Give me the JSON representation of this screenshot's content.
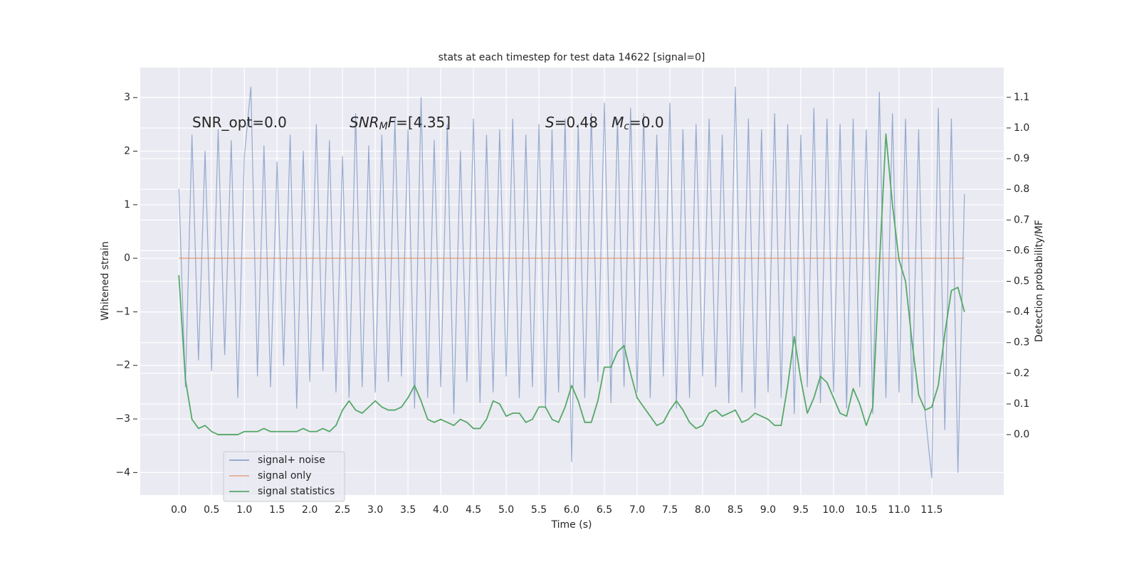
{
  "chart_data": {
    "type": "line",
    "title": "stats at each timestep for test data 14622 [signal=0]",
    "xlabel": "Time (s)",
    "ylabel": "Whitened strain",
    "y2label": "Detection probability/MF",
    "xlim": [
      -0.59,
      12.6
    ],
    "ylim": [
      -4.42,
      3.56
    ],
    "y2lim": [
      -0.197,
      1.197
    ],
    "xticks": [
      {
        "value": 0,
        "label": "0.0"
      },
      0.5,
      {
        "value": 1,
        "label": "1.0"
      },
      1.5,
      {
        "value": 2,
        "label": "2.0"
      },
      2.5,
      {
        "value": 3,
        "label": "3.0"
      },
      3.5,
      {
        "value": 4,
        "label": "4.0"
      },
      4.5,
      {
        "value": 5,
        "label": "5.0"
      },
      5.5,
      {
        "value": 6,
        "label": "6.0"
      },
      6.5,
      {
        "value": 7,
        "label": "7.0"
      },
      7.5,
      {
        "value": 8,
        "label": "8.0"
      },
      8.5,
      {
        "value": 9,
        "label": "9.0"
      },
      9.5,
      {
        "value": 10,
        "label": "10.0"
      },
      10.5,
      {
        "value": 11,
        "label": "11.0"
      },
      11.5
    ],
    "yticks": [
      {
        "value": -4,
        "label": "−4"
      },
      {
        "value": -3,
        "label": "−3"
      },
      {
        "value": -2,
        "label": "−2"
      },
      {
        "value": -1,
        "label": "−1"
      },
      0,
      1,
      2,
      3
    ],
    "y2ticks": [
      {
        "value": 0,
        "label": "0.0"
      },
      0.1,
      0.2,
      0.3,
      0.4,
      0.5,
      0.6,
      0.7,
      0.8,
      0.9,
      {
        "value": 1,
        "label": "1.0"
      },
      1.1
    ],
    "grid": true,
    "legend": "lower left",
    "annotations": [
      [
        {
          "text": "SNR_opt=0.0"
        }
      ],
      [
        {
          "text": "SNR",
          "italic": true
        },
        {
          "text": "M",
          "italic": true,
          "sub": true
        },
        {
          "text": "F",
          "italic": true
        },
        {
          "text": "=[4.35]"
        }
      ],
      [
        {
          "text": "S",
          "italic": true
        },
        {
          "text": "=0.48   "
        },
        {
          "text": "M",
          "italic": true
        },
        {
          "text": "c",
          "italic": true,
          "sub": true
        },
        {
          "text": "=0.0"
        }
      ]
    ],
    "x": [
      0,
      0.1,
      0.2,
      0.3,
      0.4,
      0.5,
      0.6,
      0.7,
      0.8,
      0.9,
      1,
      1.1,
      1.2,
      1.3,
      1.4,
      1.5,
      1.6,
      1.7,
      1.8,
      1.9,
      2,
      2.1,
      2.2,
      2.3,
      2.4,
      2.5,
      2.6,
      2.7,
      2.8,
      2.9,
      3,
      3.1,
      3.2,
      3.3,
      3.4,
      3.5,
      3.6,
      3.7,
      3.8,
      3.9,
      4,
      4.1,
      4.2,
      4.3,
      4.4,
      4.5,
      4.6,
      4.7,
      4.8,
      4.9,
      5,
      5.1,
      5.2,
      5.3,
      5.4,
      5.5,
      5.6,
      5.7,
      5.8,
      5.9,
      6,
      6.1,
      6.2,
      6.3,
      6.4,
      6.5,
      6.6,
      6.7,
      6.8,
      6.9,
      7,
      7.1,
      7.2,
      7.3,
      7.4,
      7.5,
      7.6,
      7.7,
      7.8,
      7.9,
      8,
      8.1,
      8.2,
      8.3,
      8.4,
      8.5,
      8.6,
      8.7,
      8.8,
      8.9,
      9,
      9.1,
      9.2,
      9.3,
      9.4,
      9.5,
      9.6,
      9.7,
      9.8,
      9.9,
      10,
      10.1,
      10.2,
      10.3,
      10.4,
      10.5,
      10.6,
      10.7,
      10.8,
      10.9,
      11,
      11.1,
      11.2,
      11.3,
      11.4,
      11.5,
      11.6,
      11.7,
      11.8,
      11.9,
      12
    ],
    "series": [
      {
        "name": "signal+ noise",
        "color": "#4c72b0",
        "values": [
          1.3,
          -2.4,
          2.3,
          -1.9,
          2.0,
          -2.1,
          2.4,
          -1.8,
          2.2,
          -2.6,
          1.9,
          3.2,
          -2.2,
          2.1,
          -2.4,
          1.8,
          -2.0,
          2.3,
          -2.8,
          2.0,
          -2.3,
          2.5,
          -2.1,
          2.2,
          -2.5,
          1.9,
          -2.6,
          2.7,
          -2.4,
          2.1,
          -2.5,
          2.3,
          -2.3,
          2.6,
          -2.2,
          2.4,
          -2.8,
          3.0,
          -2.6,
          2.2,
          -2.4,
          2.5,
          -2.9,
          2.0,
          -2.3,
          2.6,
          -2.7,
          2.3,
          -2.5,
          2.4,
          -2.2,
          2.6,
          -2.6,
          2.3,
          -2.4,
          2.5,
          -2.8,
          2.4,
          -2.5,
          2.6,
          -3.8,
          2.5,
          -2.6,
          2.7,
          -2.3,
          2.9,
          -2.7,
          2.6,
          -2.4,
          2.8,
          -2.5,
          2.7,
          -2.6,
          2.3,
          -2.2,
          2.9,
          -2.8,
          2.4,
          -2.6,
          2.5,
          -2.2,
          2.6,
          -2.4,
          2.3,
          -2.7,
          3.2,
          -2.5,
          2.6,
          -2.8,
          2.4,
          -2.5,
          2.7,
          -2.6,
          2.5,
          -2.9,
          2.3,
          -2.4,
          2.8,
          -2.7,
          2.6,
          -2.5,
          2.5,
          -2.8,
          2.6,
          -2.4,
          2.4,
          -2.9,
          3.1,
          -2.6,
          2.7,
          -2.5,
          2.6,
          -2.7,
          2.4,
          -2.9,
          -4.1,
          2.8,
          -3.2,
          2.6,
          -4.0,
          1.2
        ]
      },
      {
        "name": "signal only",
        "color": "#dd8452",
        "x": [
          0,
          12
        ],
        "values": [
          0,
          0
        ]
      },
      {
        "name": "signal statistics",
        "color": "#55a868",
        "axis": "y2",
        "values": [
          0.52,
          0.18,
          0.05,
          0.02,
          0.03,
          0.01,
          0,
          0,
          0,
          0,
          0.01,
          0.01,
          0.01,
          0.02,
          0.01,
          0.01,
          0.01,
          0.01,
          0.01,
          0.02,
          0.01,
          0.01,
          0.02,
          0.01,
          0.03,
          0.08,
          0.11,
          0.08,
          0.07,
          0.09,
          0.11,
          0.09,
          0.08,
          0.08,
          0.09,
          0.12,
          0.16,
          0.11,
          0.05,
          0.04,
          0.05,
          0.04,
          0.03,
          0.05,
          0.04,
          0.02,
          0.02,
          0.05,
          0.11,
          0.1,
          0.06,
          0.07,
          0.07,
          0.04,
          0.05,
          0.09,
          0.09,
          0.05,
          0.04,
          0.09,
          0.16,
          0.11,
          0.04,
          0.04,
          0.11,
          0.22,
          0.22,
          0.27,
          0.29,
          0.2,
          0.12,
          0.09,
          0.06,
          0.03,
          0.04,
          0.08,
          0.11,
          0.08,
          0.04,
          0.02,
          0.03,
          0.07,
          0.08,
          0.06,
          0.07,
          0.08,
          0.04,
          0.05,
          0.07,
          0.06,
          0.05,
          0.03,
          0.03,
          0.16,
          0.32,
          0.18,
          0.07,
          0.12,
          0.19,
          0.17,
          0.12,
          0.07,
          0.06,
          0.15,
          0.1,
          0.03,
          0.09,
          0.55,
          0.98,
          0.75,
          0.57,
          0.5,
          0.3,
          0.13,
          0.08,
          0.09,
          0.16,
          0.33,
          0.47,
          0.48,
          0.4
        ]
      }
    ]
  }
}
